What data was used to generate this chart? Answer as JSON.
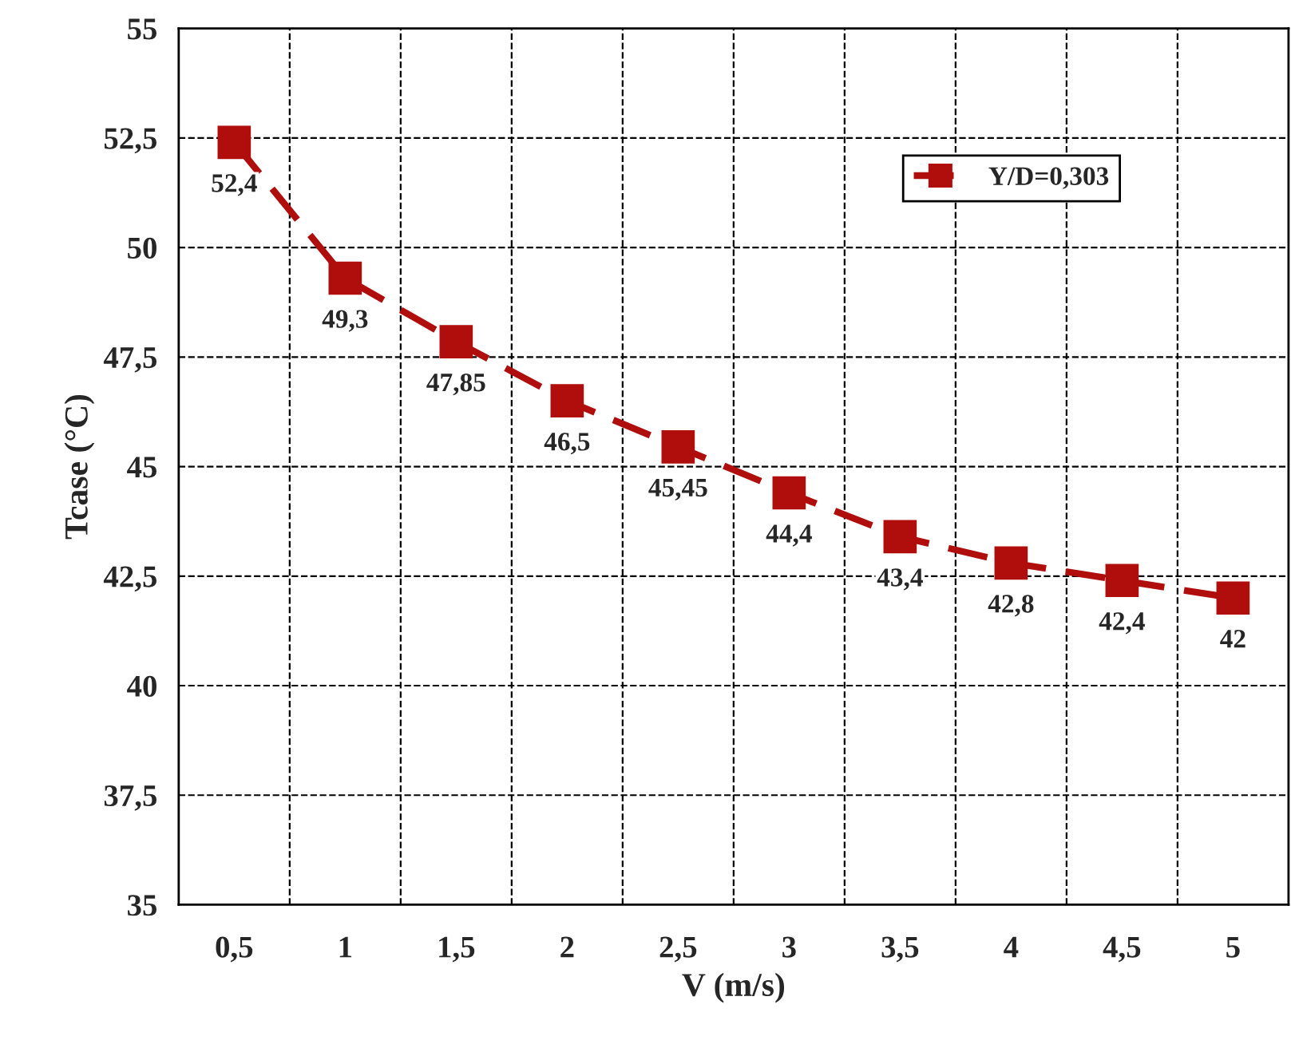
{
  "chart_data": {
    "type": "line",
    "xlabel": "V (m/s)",
    "ylabel": "Tcase (°C)",
    "categories": [
      "0,5",
      "1",
      "1,5",
      "2",
      "2,5",
      "3",
      "3,5",
      "4",
      "4,5",
      "5"
    ],
    "series": [
      {
        "name": "Y/D=0,303",
        "color": "#b00d0d",
        "values": [
          52.4,
          49.3,
          47.85,
          46.5,
          45.45,
          44.4,
          43.4,
          42.8,
          42.4,
          42
        ],
        "value_labels": [
          "52,4",
          "49,3",
          "47,85",
          "46,5",
          "45,45",
          "44,4",
          "43,4",
          "42,8",
          "42,4",
          "42"
        ]
      }
    ],
    "ylim": [
      35,
      55
    ],
    "yticks": [
      35,
      {
        "value": 37.5,
        "label": "37,5"
      },
      40,
      {
        "value": 42.5,
        "label": "42,5"
      },
      45,
      {
        "value": 47.5,
        "label": "47,5"
      },
      50,
      {
        "value": 52.5,
        "label": "52,5"
      },
      55
    ],
    "grid": true,
    "legend": "top right",
    "marker": "square",
    "line_style": "dashed"
  }
}
